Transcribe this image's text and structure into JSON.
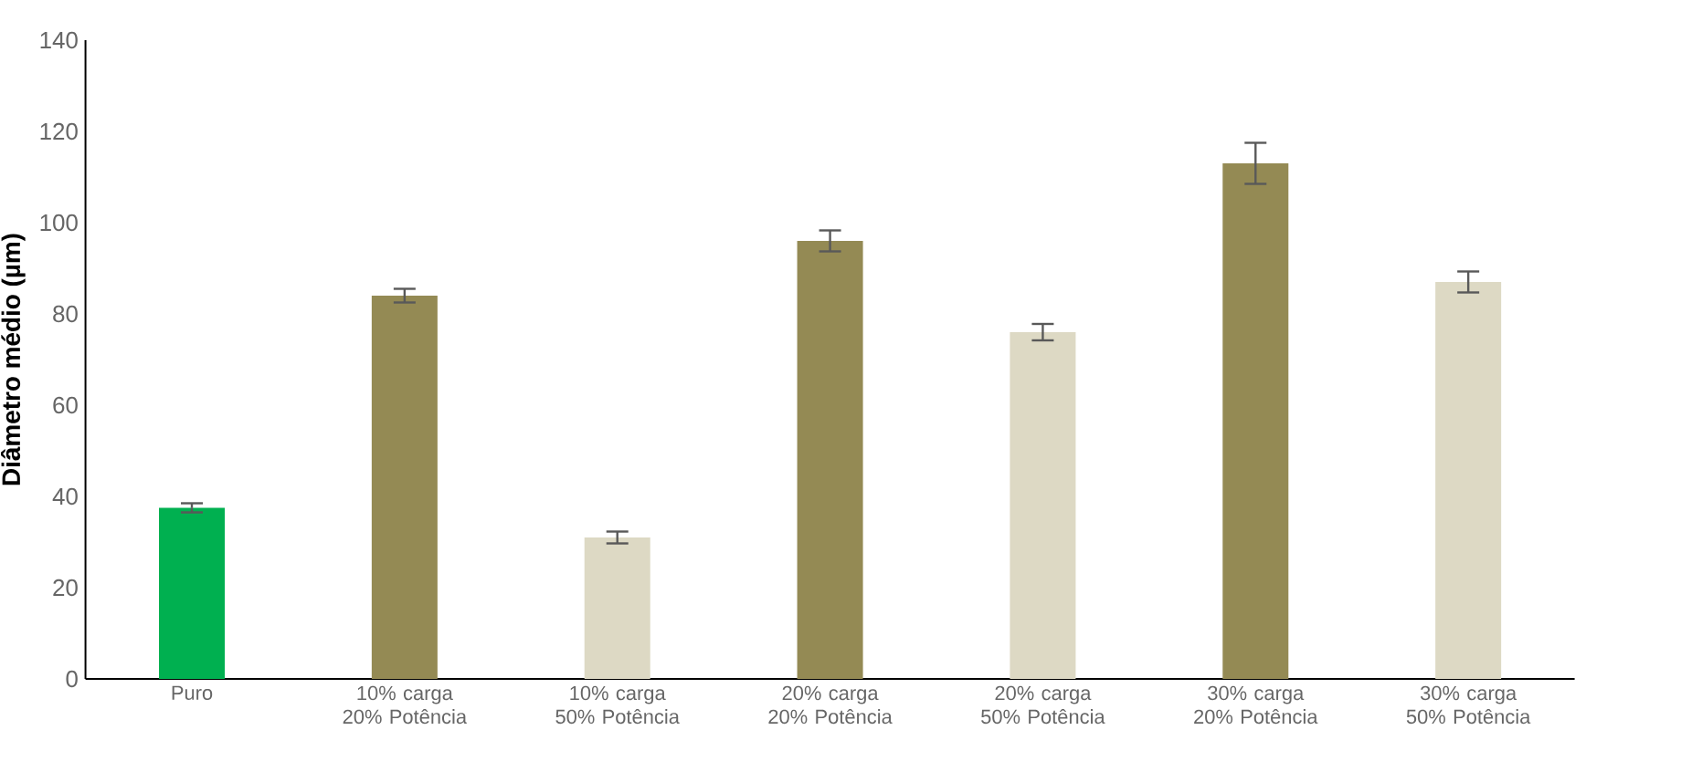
{
  "chart_data": {
    "type": "bar",
    "ylabel": "Diâmetro médio (µm)",
    "categories": [
      "Puro",
      "10% carga 20% Potência",
      "10% carga 50% Potência",
      "20% carga 20% Potência",
      "20% carga 50% Potência",
      "30% carga 20% Potência",
      "30% carga 50% Potência"
    ],
    "values": [
      37.5,
      84,
      31,
      96,
      76,
      113,
      87
    ],
    "errors": [
      1,
      1.5,
      1.3,
      2.3,
      1.8,
      4.5,
      2.3
    ],
    "colors": [
      "#00b050",
      "#948a54",
      "#ddd9c4",
      "#948a54",
      "#ddd9c4",
      "#948a54",
      "#ddd9c4"
    ],
    "ylim": [
      0,
      140
    ],
    "yticks": [
      0,
      20,
      40,
      60,
      80,
      100,
      120,
      140
    ],
    "grid": false
  }
}
